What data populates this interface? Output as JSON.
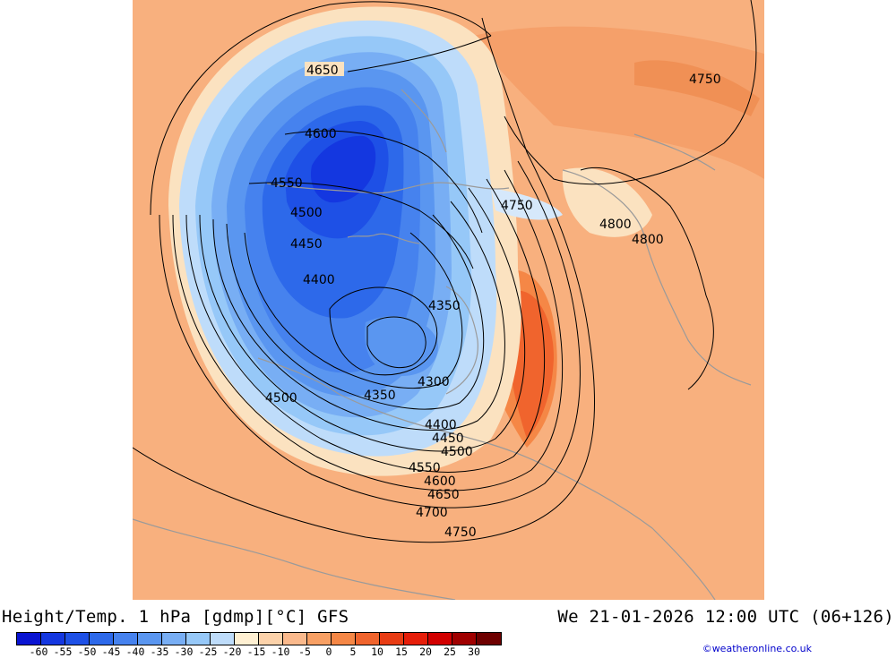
{
  "header": {
    "title": "Height/Temp. 1 hPa [gdmp][°C] GFS",
    "valid_time": "We 21-01-2026 12:00 UTC (06+126)"
  },
  "credit": "©weatheronline.co.uk",
  "legend": {
    "ticks": [
      "-60",
      "-55",
      "-50",
      "-45",
      "-40",
      "-35",
      "-30",
      "-25",
      "-20",
      "-15",
      "-10",
      "-5",
      "0",
      "5",
      "10",
      "15",
      "20",
      "25",
      "30"
    ],
    "colors": [
      "#0a14d2",
      "#1437e0",
      "#1e50e6",
      "#2d69ea",
      "#4682ee",
      "#5a96f0",
      "#78aef4",
      "#96c8f8",
      "#bedcfa",
      "#fff0d2",
      "#fcd2aa",
      "#fab98c",
      "#f8a064",
      "#f58746",
      "#f0642d",
      "#e83c14",
      "#e61e0a",
      "#d20000",
      "#a00000",
      "#6e0000"
    ]
  },
  "contours": {
    "labels": [
      "4650",
      "4600",
      "4550",
      "4500",
      "4450",
      "4400",
      "4350",
      "4300",
      "4350",
      "4500",
      "4400",
      "4450",
      "4500",
      "4550",
      "4600",
      "4650",
      "4700",
      "4750",
      "4750",
      "4750",
      "4800",
      "4800"
    ]
  }
}
